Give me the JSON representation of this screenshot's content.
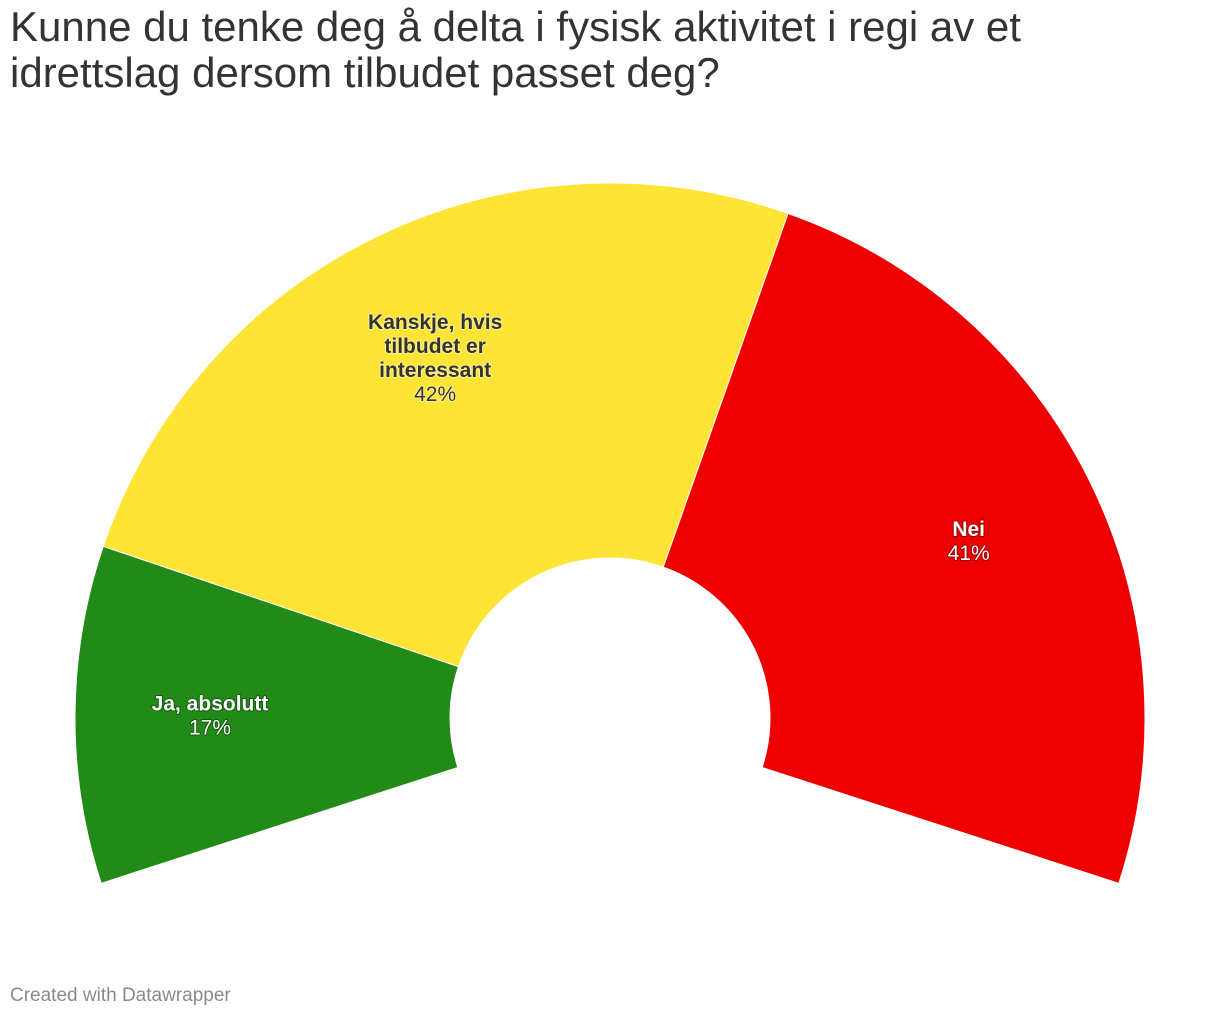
{
  "chart_data": {
    "type": "pie",
    "variant": "half-donut",
    "title": "Kunne du tenke deg å delta i fysisk aktivitet i regi av et idrettslag dersom tilbudet passet deg?",
    "slices": [
      {
        "label": "Ja, absolutt",
        "value": 17,
        "value_label": "17%",
        "color": "#228b18",
        "label_color": "#ffffff",
        "label_lines": [
          "Ja, absolutt"
        ]
      },
      {
        "label": "Kanskje, hvis tilbudet er interessant",
        "value": 42,
        "value_label": "42%",
        "color": "#fee435",
        "label_color": "#333333",
        "label_lines": [
          "Kanskje, hvis",
          "tilbudet er",
          "interessant"
        ]
      },
      {
        "label": "Nei",
        "value": 41,
        "value_label": "41%",
        "color": "#ee0000",
        "label_color": "#ffffff",
        "label_lines": [
          "Nei"
        ]
      }
    ],
    "legend": "none"
  },
  "footer": {
    "credit": "Created with Datawrapper"
  }
}
